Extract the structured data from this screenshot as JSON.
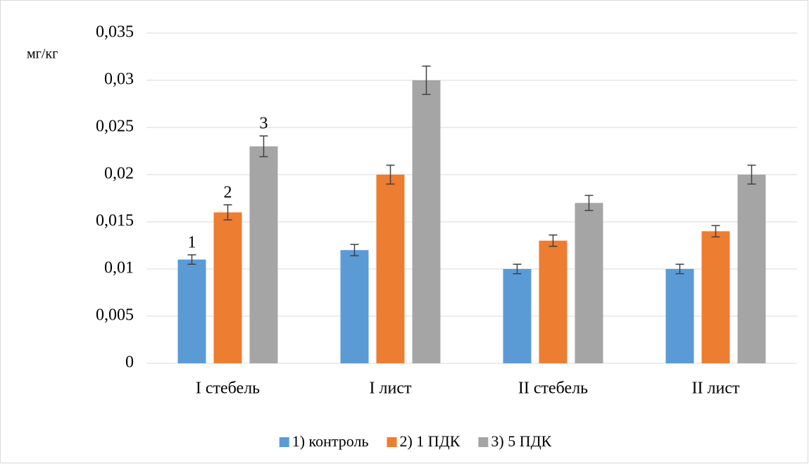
{
  "chart_data": {
    "type": "bar",
    "y_label": "мг/кг",
    "categories": [
      "I стебель",
      "I лист",
      "II стебель",
      "II лист"
    ],
    "series": [
      {
        "name": "1) контроль",
        "color": "#5b9bd5",
        "values": [
          0.011,
          0.012,
          0.01,
          0.01
        ],
        "errors": [
          0.0005,
          0.0006,
          0.0005,
          0.0005
        ]
      },
      {
        "name": "2) 1 ПДК",
        "color": "#ed7d31",
        "values": [
          0.016,
          0.02,
          0.013,
          0.014
        ],
        "errors": [
          0.0008,
          0.001,
          0.0006,
          0.0006
        ]
      },
      {
        "name": "3) 5 ПДК",
        "color": "#a5a5a5",
        "values": [
          0.023,
          0.03,
          0.017,
          0.02
        ],
        "errors": [
          0.0011,
          0.0015,
          0.0008,
          0.001
        ]
      }
    ],
    "annotations": [
      "1",
      "2",
      "3"
    ],
    "ylim": [
      0,
      0.035
    ],
    "yticks": [
      0,
      {
        "value": 0.005,
        "label": "0,005"
      },
      {
        "value": 0.01,
        "label": "0,01"
      },
      {
        "value": 0.015,
        "label": "0,015"
      },
      {
        "value": 0.02,
        "label": "0,02"
      },
      {
        "value": 0.025,
        "label": "0,025"
      },
      {
        "value": 0.03,
        "label": "0,03"
      },
      {
        "value": 0.035,
        "label": "0,035"
      }
    ],
    "grid": true,
    "legend": "bottom"
  }
}
